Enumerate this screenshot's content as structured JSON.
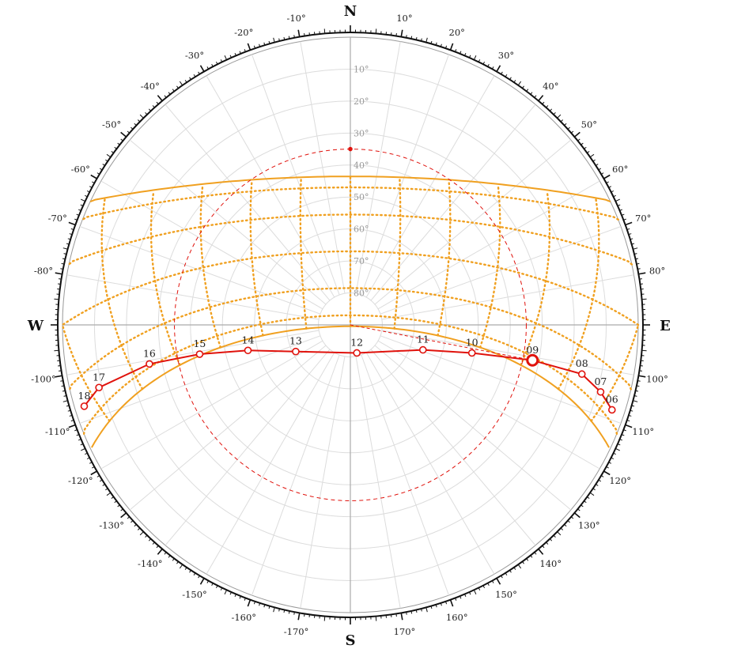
{
  "chart_data": {
    "type": "scatter",
    "projection": "polar sun path diagram (azimuth / altitude)",
    "cardinals": {
      "north": "N",
      "east": "E",
      "south": "S",
      "west": "W"
    },
    "azimuth_tick_labels": [
      "10°",
      "20°",
      "30°",
      "40°",
      "50°",
      "60°",
      "70°",
      "80°",
      "100°",
      "110°",
      "120°",
      "130°",
      "140°",
      "150°",
      "160°",
      "170°",
      "-10°",
      "-20°",
      "-30°",
      "-40°",
      "-50°",
      "-60°",
      "-70°",
      "-80°",
      "-100°",
      "-110°",
      "-120°",
      "-130°",
      "-140°",
      "-150°",
      "-160°",
      "-170°"
    ],
    "altitude_ring_labels": [
      "10°",
      "20°",
      "30°",
      "40°",
      "50°",
      "60°",
      "70°",
      "80°"
    ],
    "sun_path_today": {
      "color": "#e0120c",
      "points": [
        {
          "hour": "06",
          "azimuth": 108,
          "altitude": 4
        },
        {
          "hour": "07",
          "azimuth": 105,
          "altitude": 9
        },
        {
          "hour": "08",
          "azimuth": 102,
          "altitude": 16
        },
        {
          "hour": "09",
          "azimuth": 101,
          "altitude": 32
        },
        {
          "hour": "10",
          "azimuth": 103,
          "altitude": 51
        },
        {
          "hour": "11",
          "azimuth": 109,
          "altitude": 66
        },
        {
          "hour": "12",
          "azimuth": 167,
          "altitude": 81
        },
        {
          "hour": "13",
          "azimuth": -116,
          "altitude": 71
        },
        {
          "hour": "14",
          "azimuth": -104,
          "altitude": 57
        },
        {
          "hour": "15",
          "azimuth": -101,
          "altitude": 42
        },
        {
          "hour": "16",
          "azimuth": -101,
          "altitude": 26
        },
        {
          "hour": "17",
          "azimuth": -104,
          "altitude": 9
        },
        {
          "hour": "18",
          "azimuth": -107,
          "altitude": 3
        }
      ],
      "current_point": {
        "hour": "09",
        "azimuth": 101,
        "altitude": 32
      }
    },
    "reference_circle_altitude": 35,
    "bounding_curves": {
      "color": "#f0a020"
    },
    "annual_grid": {
      "color": "#f0a020",
      "style": "dotted"
    }
  }
}
